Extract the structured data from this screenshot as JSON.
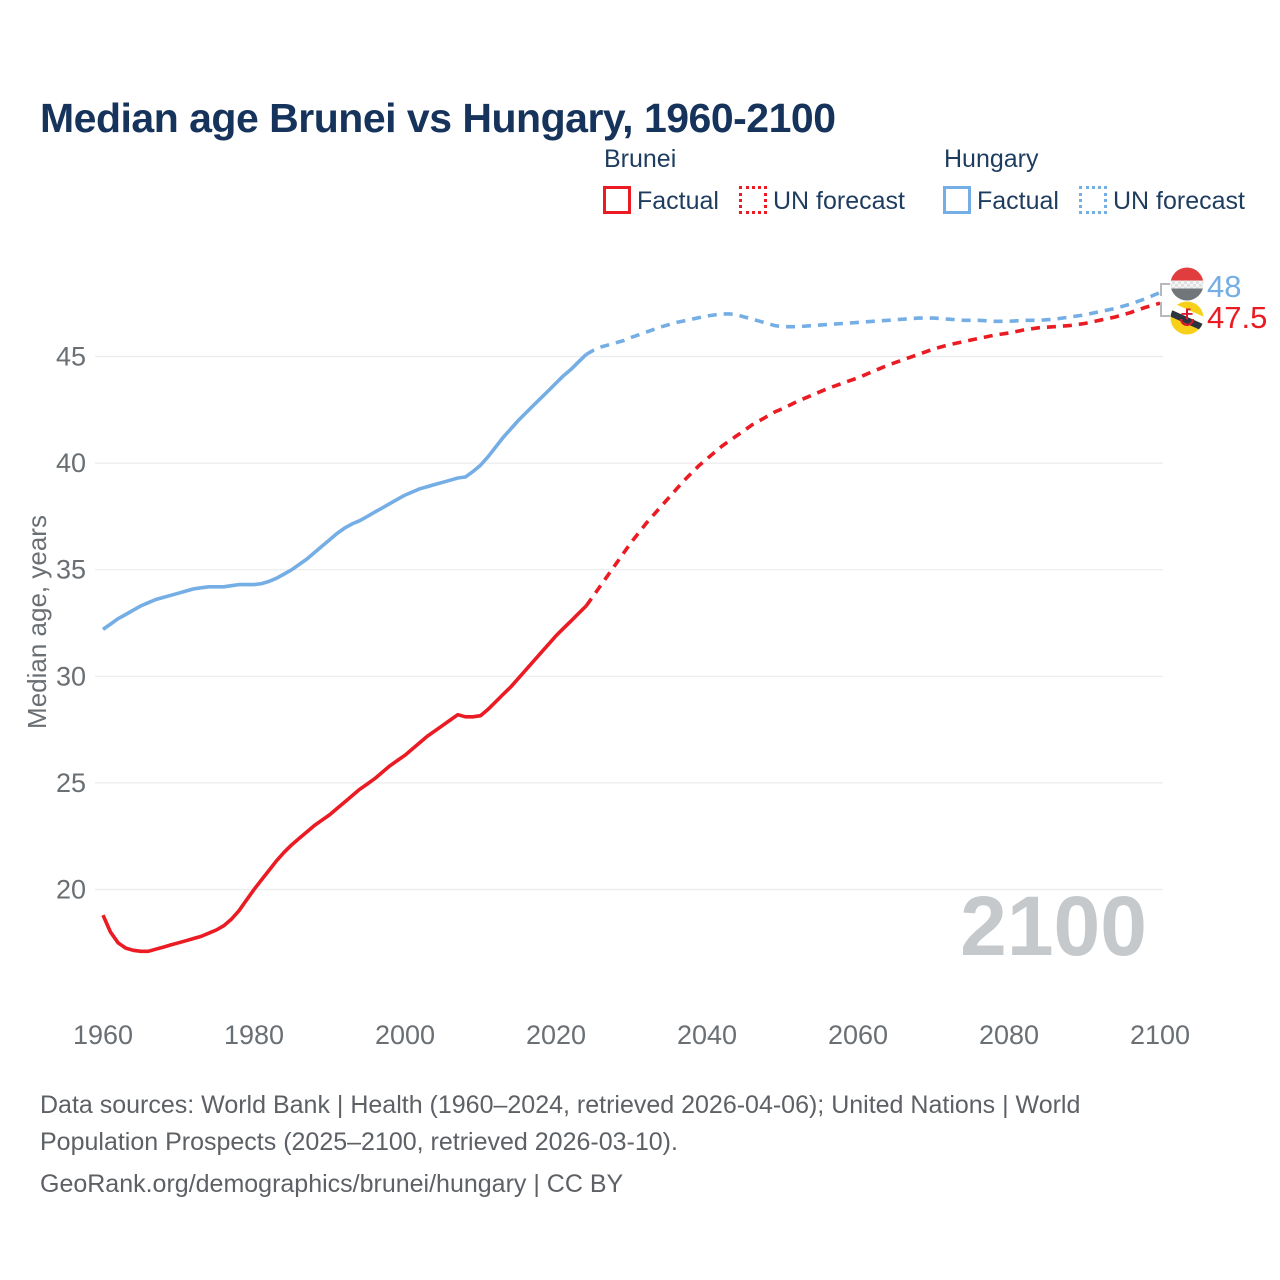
{
  "title": "Median age Brunei vs Hungary, 1960-2100",
  "legend": {
    "groups": [
      {
        "name": "Brunei",
        "color": "#ea1b23",
        "items": [
          {
            "label": "Factual",
            "style": "solid"
          },
          {
            "label": "UN forecast",
            "style": "dotted"
          }
        ]
      },
      {
        "name": "Hungary",
        "color": "#74aee4",
        "items": [
          {
            "label": "Factual",
            "style": "solid"
          },
          {
            "label": "UN forecast",
            "style": "dotted"
          }
        ]
      }
    ]
  },
  "chart_data": {
    "type": "line",
    "title": "Median age Brunei vs Hungary, 1960-2100",
    "xlabel": "",
    "ylabel": "Median age, years",
    "x_ticks": [
      1960,
      1980,
      2000,
      2020,
      2040,
      2060,
      2080,
      2100
    ],
    "y_ticks": [
      20,
      25,
      30,
      35,
      40,
      45
    ],
    "xlim": [
      1959,
      2101
    ],
    "ylim": [
      16,
      49
    ],
    "grid": true,
    "legend_position": "top-right",
    "watermark": "2100",
    "series": [
      {
        "name": "Brunei factual",
        "color": "#ea1b23",
        "style": "solid",
        "points": [
          [
            1960,
            18.8
          ],
          [
            1961,
            18.0
          ],
          [
            1962,
            17.5
          ],
          [
            1963,
            17.25
          ],
          [
            1964,
            17.15
          ],
          [
            1965,
            17.1
          ],
          [
            1966,
            17.1
          ],
          [
            1967,
            17.2
          ],
          [
            1968,
            17.3
          ],
          [
            1969,
            17.4
          ],
          [
            1970,
            17.5
          ],
          [
            1971,
            17.6
          ],
          [
            1972,
            17.7
          ],
          [
            1973,
            17.8
          ],
          [
            1974,
            17.95
          ],
          [
            1975,
            18.1
          ],
          [
            1976,
            18.3
          ],
          [
            1977,
            18.6
          ],
          [
            1978,
            19.0
          ],
          [
            1979,
            19.5
          ],
          [
            1980,
            20.0
          ],
          [
            1981,
            20.45
          ],
          [
            1982,
            20.9
          ],
          [
            1983,
            21.35
          ],
          [
            1984,
            21.75
          ],
          [
            1985,
            22.1
          ],
          [
            1986,
            22.4
          ],
          [
            1987,
            22.7
          ],
          [
            1988,
            23.0
          ],
          [
            1989,
            23.25
          ],
          [
            1990,
            23.5
          ],
          [
            1991,
            23.8
          ],
          [
            1992,
            24.1
          ],
          [
            1993,
            24.4
          ],
          [
            1994,
            24.7
          ],
          [
            1995,
            24.95
          ],
          [
            1996,
            25.2
          ],
          [
            1997,
            25.5
          ],
          [
            1998,
            25.8
          ],
          [
            1999,
            26.05
          ],
          [
            2000,
            26.3
          ],
          [
            2001,
            26.6
          ],
          [
            2002,
            26.9
          ],
          [
            2003,
            27.2
          ],
          [
            2004,
            27.45
          ],
          [
            2005,
            27.7
          ],
          [
            2006,
            27.95
          ],
          [
            2007,
            28.2
          ],
          [
            2008,
            28.1
          ],
          [
            2009,
            28.1
          ],
          [
            2010,
            28.15
          ],
          [
            2011,
            28.45
          ],
          [
            2012,
            28.8
          ],
          [
            2013,
            29.15
          ],
          [
            2014,
            29.5
          ],
          [
            2015,
            29.9
          ],
          [
            2016,
            30.3
          ],
          [
            2017,
            30.7
          ],
          [
            2018,
            31.1
          ],
          [
            2019,
            31.5
          ],
          [
            2020,
            31.9
          ],
          [
            2021,
            32.25
          ],
          [
            2022,
            32.6
          ],
          [
            2023,
            32.95
          ],
          [
            2024,
            33.3
          ]
        ]
      },
      {
        "name": "Brunei UN forecast",
        "color": "#ea1b23",
        "style": "dashed",
        "points": [
          [
            2024,
            33.3
          ],
          [
            2025,
            33.8
          ],
          [
            2026,
            34.3
          ],
          [
            2027,
            34.8
          ],
          [
            2028,
            35.3
          ],
          [
            2029,
            35.8
          ],
          [
            2030,
            36.3
          ],
          [
            2031,
            36.75
          ],
          [
            2032,
            37.2
          ],
          [
            2033,
            37.6
          ],
          [
            2034,
            38.0
          ],
          [
            2035,
            38.4
          ],
          [
            2036,
            38.8
          ],
          [
            2037,
            39.2
          ],
          [
            2038,
            39.55
          ],
          [
            2039,
            39.9
          ],
          [
            2040,
            40.2
          ],
          [
            2041,
            40.5
          ],
          [
            2042,
            40.8
          ],
          [
            2043,
            41.05
          ],
          [
            2044,
            41.3
          ],
          [
            2045,
            41.55
          ],
          [
            2046,
            41.8
          ],
          [
            2047,
            42.0
          ],
          [
            2048,
            42.2
          ],
          [
            2049,
            42.4
          ],
          [
            2050,
            42.55
          ],
          [
            2052,
            42.9
          ],
          [
            2054,
            43.2
          ],
          [
            2056,
            43.5
          ],
          [
            2058,
            43.75
          ],
          [
            2060,
            44.0
          ],
          [
            2062,
            44.3
          ],
          [
            2064,
            44.6
          ],
          [
            2066,
            44.85
          ],
          [
            2068,
            45.1
          ],
          [
            2070,
            45.35
          ],
          [
            2072,
            45.55
          ],
          [
            2074,
            45.7
          ],
          [
            2076,
            45.85
          ],
          [
            2078,
            46.0
          ],
          [
            2080,
            46.1
          ],
          [
            2082,
            46.25
          ],
          [
            2084,
            46.35
          ],
          [
            2086,
            46.4
          ],
          [
            2088,
            46.45
          ],
          [
            2090,
            46.55
          ],
          [
            2092,
            46.7
          ],
          [
            2094,
            46.85
          ],
          [
            2096,
            47.05
          ],
          [
            2098,
            47.3
          ],
          [
            2100,
            47.5
          ]
        ]
      },
      {
        "name": "Hungary factual",
        "color": "#74aee4",
        "style": "solid",
        "points": [
          [
            1960,
            32.2
          ],
          [
            1961,
            32.45
          ],
          [
            1962,
            32.7
          ],
          [
            1963,
            32.9
          ],
          [
            1964,
            33.1
          ],
          [
            1965,
            33.3
          ],
          [
            1966,
            33.45
          ],
          [
            1967,
            33.6
          ],
          [
            1968,
            33.7
          ],
          [
            1969,
            33.8
          ],
          [
            1970,
            33.9
          ],
          [
            1971,
            34.0
          ],
          [
            1972,
            34.1
          ],
          [
            1973,
            34.15
          ],
          [
            1974,
            34.2
          ],
          [
            1975,
            34.2
          ],
          [
            1976,
            34.2
          ],
          [
            1977,
            34.25
          ],
          [
            1978,
            34.3
          ],
          [
            1979,
            34.3
          ],
          [
            1980,
            34.3
          ],
          [
            1981,
            34.35
          ],
          [
            1982,
            34.45
          ],
          [
            1983,
            34.6
          ],
          [
            1984,
            34.8
          ],
          [
            1985,
            35.0
          ],
          [
            1986,
            35.25
          ],
          [
            1987,
            35.5
          ],
          [
            1988,
            35.8
          ],
          [
            1989,
            36.1
          ],
          [
            1990,
            36.4
          ],
          [
            1991,
            36.7
          ],
          [
            1992,
            36.95
          ],
          [
            1993,
            37.15
          ],
          [
            1994,
            37.3
          ],
          [
            1995,
            37.5
          ],
          [
            1996,
            37.7
          ],
          [
            1997,
            37.9
          ],
          [
            1998,
            38.1
          ],
          [
            1999,
            38.3
          ],
          [
            2000,
            38.5
          ],
          [
            2001,
            38.65
          ],
          [
            2002,
            38.8
          ],
          [
            2003,
            38.9
          ],
          [
            2004,
            39.0
          ],
          [
            2005,
            39.1
          ],
          [
            2006,
            39.2
          ],
          [
            2007,
            39.3
          ],
          [
            2008,
            39.35
          ],
          [
            2009,
            39.6
          ],
          [
            2010,
            39.9
          ],
          [
            2011,
            40.3
          ],
          [
            2012,
            40.75
          ],
          [
            2013,
            41.2
          ],
          [
            2014,
            41.6
          ],
          [
            2015,
            42.0
          ],
          [
            2016,
            42.35
          ],
          [
            2017,
            42.7
          ],
          [
            2018,
            43.05
          ],
          [
            2019,
            43.4
          ],
          [
            2020,
            43.75
          ],
          [
            2021,
            44.1
          ],
          [
            2022,
            44.4
          ],
          [
            2023,
            44.75
          ],
          [
            2024,
            45.1
          ]
        ]
      },
      {
        "name": "Hungary UN forecast",
        "color": "#74aee4",
        "style": "dashed",
        "points": [
          [
            2024,
            45.1
          ],
          [
            2025,
            45.3
          ],
          [
            2026,
            45.45
          ],
          [
            2027,
            45.55
          ],
          [
            2028,
            45.65
          ],
          [
            2029,
            45.75
          ],
          [
            2030,
            45.9
          ],
          [
            2032,
            46.15
          ],
          [
            2034,
            46.4
          ],
          [
            2036,
            46.6
          ],
          [
            2038,
            46.75
          ],
          [
            2040,
            46.9
          ],
          [
            2042,
            47.0
          ],
          [
            2043,
            47.0
          ],
          [
            2044,
            46.95
          ],
          [
            2045,
            46.85
          ],
          [
            2046,
            46.75
          ],
          [
            2047,
            46.65
          ],
          [
            2048,
            46.55
          ],
          [
            2049,
            46.45
          ],
          [
            2050,
            46.4
          ],
          [
            2052,
            46.4
          ],
          [
            2054,
            46.45
          ],
          [
            2056,
            46.5
          ],
          [
            2058,
            46.55
          ],
          [
            2060,
            46.6
          ],
          [
            2062,
            46.65
          ],
          [
            2064,
            46.7
          ],
          [
            2066,
            46.75
          ],
          [
            2068,
            46.8
          ],
          [
            2070,
            46.8
          ],
          [
            2072,
            46.75
          ],
          [
            2074,
            46.7
          ],
          [
            2076,
            46.7
          ],
          [
            2078,
            46.65
          ],
          [
            2080,
            46.65
          ],
          [
            2082,
            46.7
          ],
          [
            2084,
            46.7
          ],
          [
            2086,
            46.75
          ],
          [
            2088,
            46.85
          ],
          [
            2090,
            46.95
          ],
          [
            2092,
            47.1
          ],
          [
            2094,
            47.25
          ],
          [
            2096,
            47.45
          ],
          [
            2098,
            47.7
          ],
          [
            2100,
            48.0
          ]
        ]
      }
    ],
    "end_labels": [
      {
        "series": "Hungary",
        "value": "48",
        "color": "#74aee4",
        "flag": "hungary-flag"
      },
      {
        "series": "Brunei",
        "value": "47.5",
        "color": "#ea1b23",
        "flag": "brunei-flag"
      }
    ]
  },
  "footer": {
    "sources_line1": "Data sources: World Bank | Health (1960–2024, retrieved 2026-04-06); United Nations | World",
    "sources_line2": "Population Prospects (2025–2100, retrieved 2026-03-10).",
    "attribution": "GeoRank.org/demographics/brunei/hungary | CC BY"
  },
  "colors": {
    "brunei": "#ea1b23",
    "hungary": "#74aee4",
    "title_text": "#15335b",
    "axis_text": "#6a6f74",
    "gridline": "#ebecee",
    "watermark": "#c6c9cc",
    "footer_text": "#5d6166"
  }
}
